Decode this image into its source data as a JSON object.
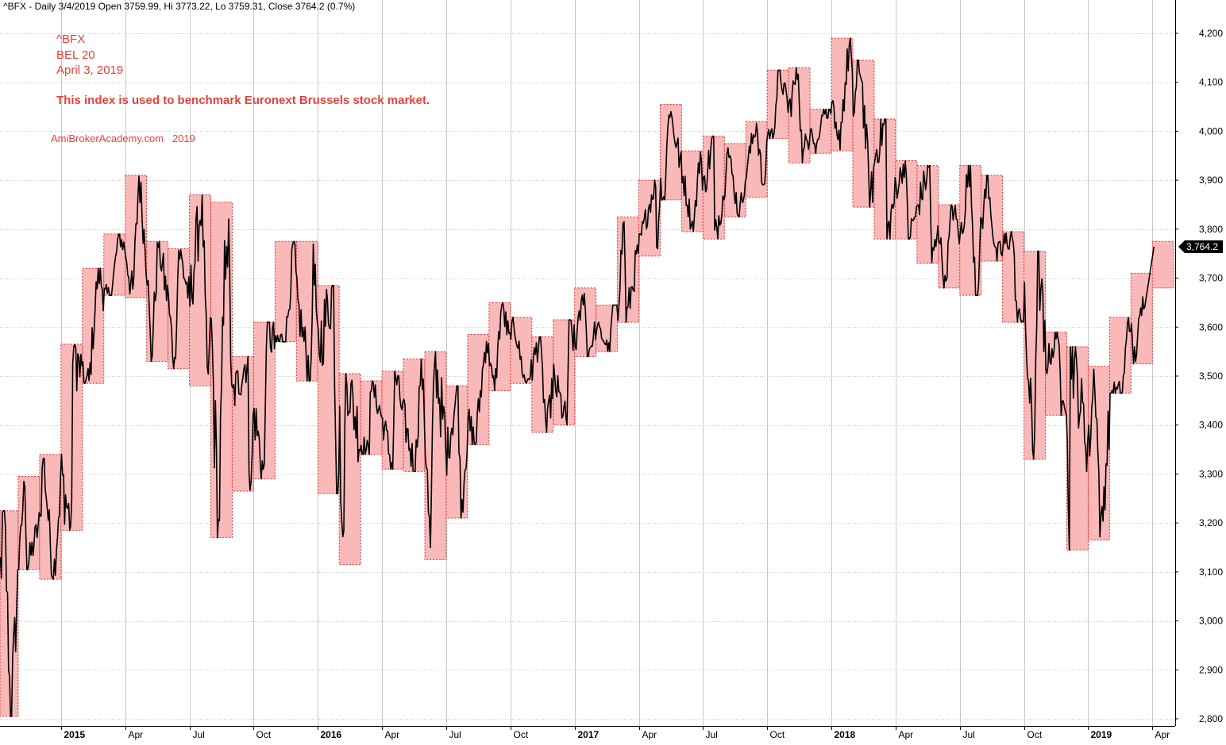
{
  "header": {
    "ticker_line": "^BFX - Daily 3/4/2019 Open 3759.99, Hi 3773.22, Lo 3759.31, Close 3764.2 (0.7%)"
  },
  "annotations": {
    "symbol": "^BFX",
    "index_name": "BEL 20",
    "date": "April 3, 2019",
    "description": "This index is used to benchmark Euronext Brussels stock market.",
    "watermark": "AmiBrokerAcademy.com   2019"
  },
  "colors": {
    "annotation_red": "#e8403a",
    "box_fill": "#f9b9b9",
    "box_border": "#e03030",
    "price_line": "#000000",
    "grid": "#c8c8c8",
    "last_price_bg": "#000000"
  },
  "chart_data": {
    "type": "line",
    "chart_style": "daily price bars with monthly high-low range boxes",
    "y_axis": {
      "position": "right",
      "ylim": [
        2780,
        4230
      ],
      "ticks": [
        "2,800",
        "2,900",
        "3,000",
        "3,100",
        "3,200",
        "3,300",
        "3,400",
        "3,500",
        "3,600",
        "3,700",
        "3,800",
        "3,900",
        "4,000",
        "4,100",
        "4,200"
      ],
      "tick_values": [
        2800,
        2900,
        3000,
        3100,
        3200,
        3300,
        3400,
        3500,
        3600,
        3700,
        3800,
        3900,
        4000,
        4100,
        4200
      ]
    },
    "x_axis": {
      "start": "2014-10",
      "end": "2019-04",
      "ticks": [
        {
          "label": "2015",
          "month": "2015-01",
          "bold": true
        },
        {
          "label": "Apr",
          "month": "2015-04",
          "bold": false
        },
        {
          "label": "Jul",
          "month": "2015-07",
          "bold": false
        },
        {
          "label": "Oct",
          "month": "2015-10",
          "bold": false
        },
        {
          "label": "2016",
          "month": "2016-01",
          "bold": true
        },
        {
          "label": "Apr",
          "month": "2016-04",
          "bold": false
        },
        {
          "label": "Jul",
          "month": "2016-07",
          "bold": false
        },
        {
          "label": "Oct",
          "month": "2016-10",
          "bold": false
        },
        {
          "label": "2017",
          "month": "2017-01",
          "bold": true
        },
        {
          "label": "Apr",
          "month": "2017-04",
          "bold": false
        },
        {
          "label": "Jul",
          "month": "2017-07",
          "bold": false
        },
        {
          "label": "Oct",
          "month": "2017-10",
          "bold": false
        },
        {
          "label": "2018",
          "month": "2018-01",
          "bold": true
        },
        {
          "label": "Apr",
          "month": "2018-04",
          "bold": false
        },
        {
          "label": "Jul",
          "month": "2018-07",
          "bold": false
        },
        {
          "label": "Oct",
          "month": "2018-10",
          "bold": false
        },
        {
          "label": "2019",
          "month": "2019-01",
          "bold": true
        },
        {
          "label": "Apr",
          "month": "2019-04",
          "bold": false
        }
      ]
    },
    "grid": true,
    "last_price": {
      "label": "3,764.2",
      "value": 3764.2
    },
    "monthly_ranges": [
      {
        "month": "2014-10",
        "low": 2805,
        "high": 3225
      },
      {
        "month": "2014-11",
        "low": 3105,
        "high": 3295
      },
      {
        "month": "2014-12",
        "low": 3085,
        "high": 3340
      },
      {
        "month": "2015-01",
        "low": 3185,
        "high": 3565
      },
      {
        "month": "2015-02",
        "low": 3485,
        "high": 3720
      },
      {
        "month": "2015-03",
        "low": 3665,
        "high": 3790
      },
      {
        "month": "2015-04",
        "low": 3660,
        "high": 3910
      },
      {
        "month": "2015-05",
        "low": 3530,
        "high": 3775
      },
      {
        "month": "2015-06",
        "low": 3515,
        "high": 3760
      },
      {
        "month": "2015-07",
        "low": 3480,
        "high": 3870
      },
      {
        "month": "2015-08",
        "low": 3170,
        "high": 3855
      },
      {
        "month": "2015-09",
        "low": 3265,
        "high": 3540
      },
      {
        "month": "2015-10",
        "low": 3290,
        "high": 3610
      },
      {
        "month": "2015-11",
        "low": 3570,
        "high": 3775
      },
      {
        "month": "2015-12",
        "low": 3490,
        "high": 3775
      },
      {
        "month": "2016-01",
        "low": 3260,
        "high": 3685
      },
      {
        "month": "2016-02",
        "low": 3115,
        "high": 3505
      },
      {
        "month": "2016-03",
        "low": 3340,
        "high": 3490
      },
      {
        "month": "2016-04",
        "low": 3310,
        "high": 3510
      },
      {
        "month": "2016-05",
        "low": 3305,
        "high": 3535
      },
      {
        "month": "2016-06",
        "low": 3125,
        "high": 3550
      },
      {
        "month": "2016-07",
        "low": 3210,
        "high": 3480
      },
      {
        "month": "2016-08",
        "low": 3360,
        "high": 3585
      },
      {
        "month": "2016-09",
        "low": 3470,
        "high": 3650
      },
      {
        "month": "2016-10",
        "low": 3485,
        "high": 3620
      },
      {
        "month": "2016-11",
        "low": 3385,
        "high": 3580
      },
      {
        "month": "2016-12",
        "low": 3400,
        "high": 3615
      },
      {
        "month": "2017-01",
        "low": 3540,
        "high": 3680
      },
      {
        "month": "2017-02",
        "low": 3550,
        "high": 3645
      },
      {
        "month": "2017-03",
        "low": 3610,
        "high": 3825
      },
      {
        "month": "2017-04",
        "low": 3745,
        "high": 3900
      },
      {
        "month": "2017-05",
        "low": 3860,
        "high": 4055
      },
      {
        "month": "2017-06",
        "low": 3795,
        "high": 3960
      },
      {
        "month": "2017-07",
        "low": 3780,
        "high": 3990
      },
      {
        "month": "2017-08",
        "low": 3825,
        "high": 3975
      },
      {
        "month": "2017-09",
        "low": 3865,
        "high": 4020
      },
      {
        "month": "2017-10",
        "low": 3985,
        "high": 4125
      },
      {
        "month": "2017-11",
        "low": 3935,
        "high": 4130
      },
      {
        "month": "2017-12",
        "low": 3955,
        "high": 4045
      },
      {
        "month": "2018-01",
        "low": 3960,
        "high": 4190
      },
      {
        "month": "2018-02",
        "low": 3845,
        "high": 4145
      },
      {
        "month": "2018-03",
        "low": 3780,
        "high": 4025
      },
      {
        "month": "2018-04",
        "low": 3780,
        "high": 3940
      },
      {
        "month": "2018-05",
        "low": 3730,
        "high": 3930
      },
      {
        "month": "2018-06",
        "low": 3680,
        "high": 3850
      },
      {
        "month": "2018-07",
        "low": 3665,
        "high": 3930
      },
      {
        "month": "2018-08",
        "low": 3735,
        "high": 3910
      },
      {
        "month": "2018-09",
        "low": 3610,
        "high": 3795
      },
      {
        "month": "2018-10",
        "low": 3330,
        "high": 3755
      },
      {
        "month": "2018-11",
        "low": 3420,
        "high": 3590
      },
      {
        "month": "2018-12",
        "low": 3145,
        "high": 3560
      },
      {
        "month": "2019-01",
        "low": 3165,
        "high": 3520
      },
      {
        "month": "2019-02",
        "low": 3465,
        "high": 3620
      },
      {
        "month": "2019-03",
        "low": 3525,
        "high": 3710
      },
      {
        "month": "2019-04",
        "low": 3680,
        "high": 3775
      }
    ]
  }
}
